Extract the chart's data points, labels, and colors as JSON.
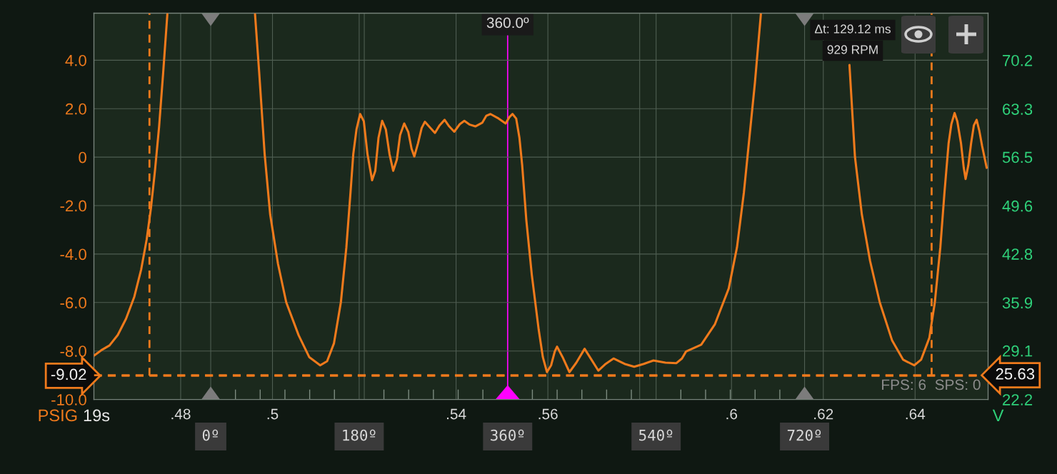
{
  "chart_data": {
    "type": "line",
    "ylabel": "PSIG",
    "y2label": "V",
    "annotations": [
      "19s",
      "Δt: 129.12 ms",
      "929 RPM",
      "FPS: 6  SPS: 0"
    ],
    "x": [
      0.4611,
      0.4627,
      0.4645,
      0.4663,
      0.4681,
      0.4699,
      0.4714,
      0.4726,
      0.4735,
      0.4744,
      0.4753,
      0.4762,
      0.4771,
      0.4866,
      0.4962,
      0.4971,
      0.4983,
      0.4995,
      0.5012,
      0.503,
      0.5057,
      0.508,
      0.5104,
      0.5119,
      0.5134,
      0.5149,
      0.5161,
      0.517,
      0.5176,
      0.5183,
      0.5191,
      0.5199,
      0.5207,
      0.5217,
      0.5224,
      0.5231,
      0.5239,
      0.5247,
      0.5255,
      0.5263,
      0.5271,
      0.5278,
      0.5287,
      0.5296,
      0.5303,
      0.5309,
      0.5317,
      0.5325,
      0.5332,
      0.5342,
      0.5354,
      0.5364,
      0.5375,
      0.5385,
      0.5396,
      0.5408,
      0.5418,
      0.543,
      0.5442,
      0.5457,
      0.5466,
      0.5475,
      0.5493,
      0.5508,
      0.5516,
      0.5523,
      0.5531,
      0.5538,
      0.5544,
      0.5553,
      0.5565,
      0.558,
      0.5589,
      0.5598,
      0.5607,
      0.5615,
      0.562,
      0.5632,
      0.5647,
      0.5662,
      0.568,
      0.5695,
      0.571,
      0.5726,
      0.5743,
      0.5767,
      0.5788,
      0.5809,
      0.583,
      0.5856,
      0.588,
      0.5892,
      0.5901,
      0.5934,
      0.5964,
      0.5994,
      0.6012,
      0.6027,
      0.6039,
      0.6051,
      0.6064,
      0.616,
      0.6257,
      0.6269,
      0.6284,
      0.6302,
      0.6323,
      0.635,
      0.6374,
      0.6398,
      0.6413,
      0.6431,
      0.6443,
      0.6455,
      0.6464,
      0.6473,
      0.6479,
      0.6486,
      0.6492,
      0.65,
      0.6506,
      0.651,
      0.6516,
      0.6522,
      0.6528,
      0.6534,
      0.654,
      0.6546,
      0.6556
    ],
    "series": [
      {
        "color": "#f07a1c",
        "values": [
          -8.19,
          -7.97,
          -7.77,
          -7.34,
          -6.67,
          -5.76,
          -4.63,
          -3.39,
          -2.14,
          -0.56,
          1.25,
          3.51,
          5.9,
          null,
          5.9,
          3.51,
          0.12,
          -2.37,
          -4.4,
          -5.99,
          -7.35,
          -8.25,
          -8.59,
          -8.42,
          -7.68,
          -5.99,
          -3.72,
          -1.46,
          0.12,
          1.14,
          1.78,
          1.48,
          0.12,
          -0.95,
          -0.56,
          0.8,
          1.5,
          1.14,
          0.12,
          -0.56,
          -0.1,
          0.91,
          1.39,
          1.03,
          0.35,
          0.03,
          0.57,
          1.2,
          1.46,
          1.25,
          1.0,
          1.31,
          1.54,
          1.27,
          1.05,
          1.36,
          1.5,
          1.34,
          1.27,
          1.42,
          1.71,
          1.78,
          1.59,
          1.39,
          1.65,
          1.78,
          1.59,
          0.8,
          -0.33,
          -2.59,
          -4.86,
          -7.12,
          -8.25,
          -8.87,
          -8.59,
          -8.02,
          -7.82,
          -8.25,
          -8.87,
          -8.48,
          -7.91,
          -8.36,
          -8.81,
          -8.53,
          -8.31,
          -8.53,
          -8.65,
          -8.53,
          -8.39,
          -8.48,
          -8.5,
          -8.31,
          -8.02,
          -7.74,
          -6.89,
          -5.42,
          -3.72,
          -1.46,
          0.8,
          3.06,
          5.9,
          null,
          3.8,
          0.01,
          -2.37,
          -4.29,
          -5.99,
          -7.57,
          -8.36,
          -8.59,
          -8.36,
          -7.46,
          -5.99,
          -3.72,
          -1.46,
          0.57,
          1.36,
          1.82,
          1.48,
          0.57,
          -0.44,
          -0.9,
          -0.33,
          0.57,
          1.31,
          1.54,
          1.08,
          0.46,
          -0.44
        ]
      }
    ],
    "xlim": [
      0.4611,
      0.6559
    ],
    "xticks": [
      {
        "value": 0.48,
        "label": ".48"
      },
      {
        "value": 0.5,
        "label": ".5"
      },
      {
        "value": 0.52,
        "label": null
      },
      {
        "value": 0.54,
        "label": ".54"
      },
      {
        "value": 0.56,
        "label": ".56"
      },
      {
        "value": 0.58,
        "label": null
      },
      {
        "value": 0.6,
        "label": ".6"
      },
      {
        "value": 0.62,
        "label": ".62"
      },
      {
        "value": 0.64,
        "label": ".64"
      }
    ],
    "x2lim": [
      -141.6,
      942.5
    ],
    "x2ticks": [
      {
        "value": 0,
        "label": "0º"
      },
      {
        "value": 30,
        "label": null
      },
      {
        "value": 60,
        "label": null
      },
      {
        "value": 90,
        "label": null
      },
      {
        "value": 120,
        "label": null
      },
      {
        "value": 150,
        "label": null
      },
      {
        "value": 180,
        "label": "180º"
      },
      {
        "value": 210,
        "label": null
      },
      {
        "value": 240,
        "label": null
      },
      {
        "value": 270,
        "label": null
      },
      {
        "value": 300,
        "label": null
      },
      {
        "value": 330,
        "label": null
      },
      {
        "value": 360,
        "label": "360º"
      },
      {
        "value": 390,
        "label": null
      },
      {
        "value": 420,
        "label": null
      },
      {
        "value": 450,
        "label": null
      },
      {
        "value": 480,
        "label": null
      },
      {
        "value": 510,
        "label": null
      },
      {
        "value": 540,
        "label": "540º"
      },
      {
        "value": 570,
        "label": null
      },
      {
        "value": 600,
        "label": null
      },
      {
        "value": 630,
        "label": null
      },
      {
        "value": 660,
        "label": null
      },
      {
        "value": 690,
        "label": null
      },
      {
        "value": 720,
        "label": "720º"
      }
    ],
    "ylim": [
      -10,
      5.94
    ],
    "yticks": [
      {
        "value": -10,
        "label": "-10.0"
      },
      {
        "value": -8,
        "label": "-8.0"
      },
      {
        "value": -6,
        "label": "-6.0"
      },
      {
        "value": -4,
        "label": "-4.0"
      },
      {
        "value": -2,
        "label": "-2.0"
      },
      0,
      {
        "value": 2,
        "label": "2.0"
      },
      {
        "value": 4,
        "label": "4.0"
      }
    ],
    "y2lim": [
      22.2,
      76.85
    ],
    "y2ticks": [
      22.2,
      29.1,
      35.9,
      42.8,
      49.6,
      56.5,
      63.3,
      70.2
    ],
    "ref_lines": [
      {
        "axis": "x",
        "value": 0.4732,
        "color": "#f07a1c",
        "line_style": "dashed"
      },
      {
        "axis": "x",
        "value": 0.6436,
        "color": "#f07a1c",
        "line_style": "dashed"
      },
      {
        "axis": "y",
        "value": -9.02,
        "label": "-9.02",
        "color": "#f07a1c",
        "line_style": "dashed"
      },
      {
        "axis": "y2",
        "value": 25.63,
        "label": "25.63",
        "color": "#f07a1c",
        "line_style": "dashed"
      },
      {
        "axis": "x2",
        "value": 360,
        "label": "360.0º",
        "color": "#ff00ff",
        "line_style": "solid"
      }
    ],
    "grid": true,
    "line_style": "solid"
  }
}
